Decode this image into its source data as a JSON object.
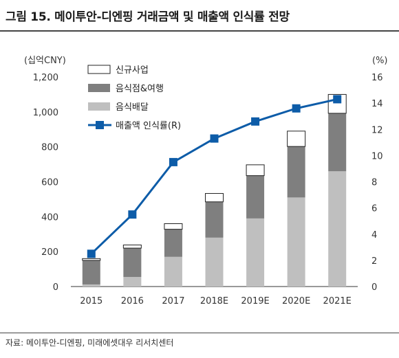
{
  "header": {
    "title": "그림 15. 메이투안-디엔핑 거래금액 및 매출액 인식률 전망"
  },
  "footer": {
    "source": "자료: 메이투안-디엔핑, 미래에셋대우 리서치센터"
  },
  "chart_data": {
    "type": "bar",
    "stacked": true,
    "categories": [
      "2015",
      "2016",
      "2017",
      "2018E",
      "2019E",
      "2020E",
      "2021E"
    ],
    "series": [
      {
        "name": "음식배달",
        "axis": "left",
        "color": "#bfbfbf",
        "values": [
          12,
          55,
          170,
          280,
          390,
          510,
          660
        ]
      },
      {
        "name": "음식점&여행",
        "axis": "left",
        "color": "#7f7f7f",
        "values": [
          138,
          165,
          158,
          205,
          245,
          292,
          332
        ]
      },
      {
        "name": "신규사업",
        "axis": "left",
        "color": "#ffffff",
        "values": [
          10,
          18,
          32,
          48,
          62,
          88,
          108
        ]
      }
    ],
    "line_series": {
      "name": "매출액 인식률(R)",
      "axis": "right",
      "color": "#0d5ca8",
      "values": [
        2.5,
        5.5,
        9.5,
        11.3,
        12.6,
        13.6,
        14.3
      ]
    },
    "y_left": {
      "label": "(십억CNY)",
      "min": 0,
      "max": 1200,
      "ticks": [
        "0",
        "200",
        "400",
        "600",
        "800",
        "1,000",
        "1,200"
      ]
    },
    "y_right": {
      "label": "(%)",
      "min": 0,
      "max": 16,
      "ticks": [
        "0",
        "2",
        "4",
        "6",
        "8",
        "10",
        "12",
        "14",
        "16"
      ]
    },
    "legend": [
      "신규사업",
      "음식점&여행",
      "음식배달",
      "매출액 인식률(R)"
    ],
    "legend_position": "top-left",
    "grid": false
  }
}
